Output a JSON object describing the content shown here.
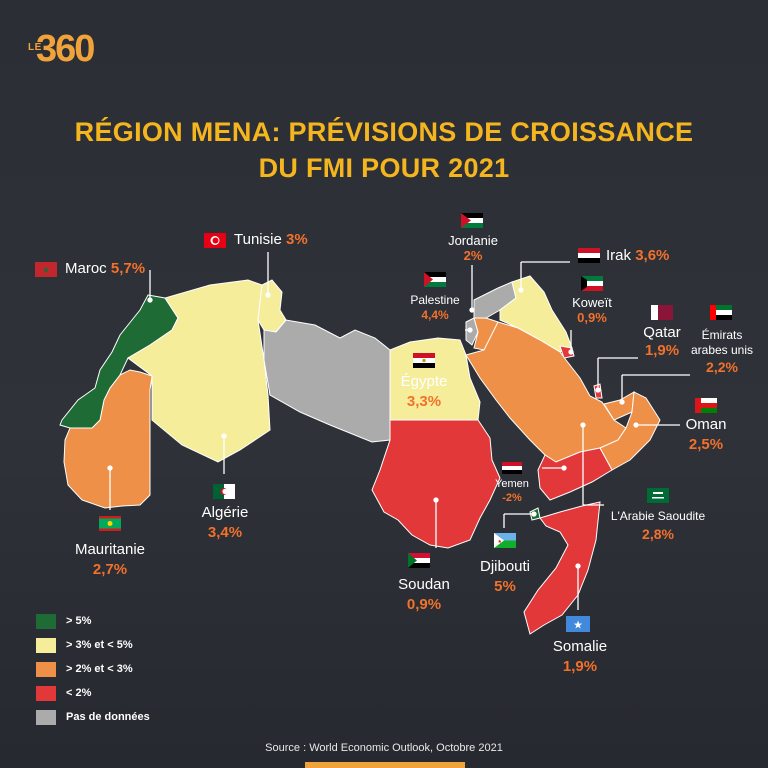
{
  "brand": {
    "le": "LE",
    "num": "360"
  },
  "title": {
    "line1": "RÉGION MENA: PRÉVISIONS DE CROISSANCE",
    "line2": "DU FMI POUR 2021"
  },
  "colors": {
    "dark_green": "#1e6b35",
    "light_yellow": "#f6ed9b",
    "orange": "#ee9048",
    "red": "#e2383a",
    "grey": "#ababab",
    "title": "#f5b51e",
    "value": "#f2712b"
  },
  "countries": {
    "maroc": {
      "name": "Maroc",
      "value": "5,7%"
    },
    "tunisie": {
      "name": "Tunisie",
      "value": "3%"
    },
    "jordanie": {
      "name": "Jordanie",
      "value": "2%"
    },
    "irak": {
      "name": "Irak",
      "value": "3,6%"
    },
    "palestine": {
      "name": "Palestine",
      "value": "4,4%"
    },
    "koweit": {
      "name": "Koweït",
      "value": "0,9%"
    },
    "qatar": {
      "name": "Qatar",
      "value": "1,9%"
    },
    "emirats": {
      "name1": "Émirats",
      "name2": "arabes unis",
      "value": "2,2%"
    },
    "egypte": {
      "name": "Égypte",
      "value": "3,3%"
    },
    "oman": {
      "name": "Oman",
      "value": "2,5%"
    },
    "yemen": {
      "name": "Yemen",
      "value": "-2%"
    },
    "algerie": {
      "name": "Algérie",
      "value": "3,4%"
    },
    "arabie": {
      "name": "L'Arabie Saoudite",
      "value": "2,8%"
    },
    "mauritanie": {
      "name": "Mauritanie",
      "value": "2,7%"
    },
    "djibouti": {
      "name": "Djibouti",
      "value": "5%"
    },
    "soudan": {
      "name": "Soudan",
      "value": "0,9%"
    },
    "somalie": {
      "name": "Somalie",
      "value": "1,9%"
    }
  },
  "legend": [
    {
      "label": "> 5%",
      "color": "#1e6b35"
    },
    {
      "label": "> 3% et < 5%",
      "color": "#f6ed9b"
    },
    {
      "label": "> 2% et < 3%",
      "color": "#ee9048"
    },
    {
      "label": "< 2%",
      "color": "#e2383a"
    },
    {
      "label": "Pas de données",
      "color": "#ababab"
    }
  ],
  "source": "Source : World Economic Outlook, Octobre 2021"
}
